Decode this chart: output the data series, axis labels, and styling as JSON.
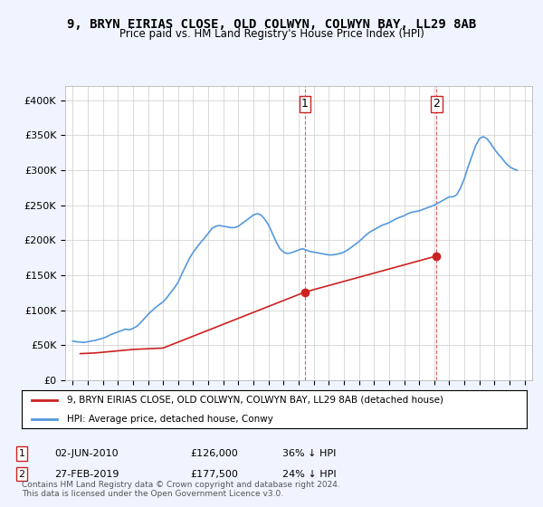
{
  "title": "9, BRYN EIRIAS CLOSE, OLD COLWYN, COLWYN BAY, LL29 8AB",
  "subtitle": "Price paid vs. HM Land Registry's House Price Index (HPI)",
  "ylabel_ticks": [
    "£0",
    "£50K",
    "£100K",
    "£150K",
    "£200K",
    "£250K",
    "£300K",
    "£350K",
    "£400K"
  ],
  "ytick_values": [
    0,
    50000,
    100000,
    150000,
    200000,
    250000,
    300000,
    350000,
    400000
  ],
  "ylim": [
    0,
    420000
  ],
  "xlim_start": 1994.5,
  "xlim_end": 2025.5,
  "hpi_color": "#5599dd",
  "price_color": "#cc2222",
  "transaction1_date": "02-JUN-2010",
  "transaction1_price": 126000,
  "transaction1_label": "36% ↓ HPI",
  "transaction2_date": "27-FEB-2019",
  "transaction2_price": 177500,
  "transaction2_label": "24% ↓ HPI",
  "transaction1_x": 2010.42,
  "transaction2_x": 2019.16,
  "legend_line1": "9, BRYN EIRIAS CLOSE, OLD COLWYN, COLWYN BAY, LL29 8AB (detached house)",
  "legend_line2": "HPI: Average price, detached house, Conwy",
  "footer": "Contains HM Land Registry data © Crown copyright and database right 2024.\nThis data is licensed under the Open Government Licence v3.0.",
  "background_color": "#f0f4ff",
  "plot_bg": "#ffffff",
  "grid_color": "#cccccc",
  "hpi_data": {
    "years": [
      1995.0,
      1995.25,
      1995.5,
      1995.75,
      1996.0,
      1996.25,
      1996.5,
      1996.75,
      1997.0,
      1997.25,
      1997.5,
      1997.75,
      1998.0,
      1998.25,
      1998.5,
      1998.75,
      1999.0,
      1999.25,
      1999.5,
      1999.75,
      2000.0,
      2000.25,
      2000.5,
      2000.75,
      2001.0,
      2001.25,
      2001.5,
      2001.75,
      2002.0,
      2002.25,
      2002.5,
      2002.75,
      2003.0,
      2003.25,
      2003.5,
      2003.75,
      2004.0,
      2004.25,
      2004.5,
      2004.75,
      2005.0,
      2005.25,
      2005.5,
      2005.75,
      2006.0,
      2006.25,
      2006.5,
      2006.75,
      2007.0,
      2007.25,
      2007.5,
      2007.75,
      2008.0,
      2008.25,
      2008.5,
      2008.75,
      2009.0,
      2009.25,
      2009.5,
      2009.75,
      2010.0,
      2010.25,
      2010.5,
      2010.75,
      2011.0,
      2011.25,
      2011.5,
      2011.75,
      2012.0,
      2012.25,
      2012.5,
      2012.75,
      2013.0,
      2013.25,
      2013.5,
      2013.75,
      2014.0,
      2014.25,
      2014.5,
      2014.75,
      2015.0,
      2015.25,
      2015.5,
      2015.75,
      2016.0,
      2016.25,
      2016.5,
      2016.75,
      2017.0,
      2017.25,
      2017.5,
      2017.75,
      2018.0,
      2018.25,
      2018.5,
      2018.75,
      2019.0,
      2019.25,
      2019.5,
      2019.75,
      2020.0,
      2020.25,
      2020.5,
      2020.75,
      2021.0,
      2021.25,
      2021.5,
      2021.75,
      2022.0,
      2022.25,
      2022.5,
      2022.75,
      2023.0,
      2023.25,
      2023.5,
      2023.75,
      2024.0,
      2024.25,
      2024.5
    ],
    "values": [
      56000,
      55000,
      54500,
      54000,
      55000,
      56000,
      57000,
      58500,
      60000,
      62000,
      65000,
      67000,
      69000,
      71000,
      73000,
      72000,
      74000,
      77000,
      82000,
      88000,
      94000,
      99000,
      104000,
      108000,
      112000,
      118000,
      125000,
      132000,
      140000,
      152000,
      163000,
      174000,
      183000,
      190000,
      197000,
      203000,
      210000,
      217000,
      220000,
      221000,
      220000,
      219000,
      218000,
      218000,
      220000,
      224000,
      228000,
      232000,
      236000,
      238000,
      236000,
      230000,
      222000,
      210000,
      198000,
      188000,
      183000,
      181000,
      182000,
      184000,
      186000,
      188000,
      186000,
      184000,
      183000,
      182000,
      181000,
      180000,
      179000,
      179000,
      180000,
      181000,
      183000,
      186000,
      190000,
      194000,
      198000,
      203000,
      208000,
      212000,
      215000,
      218000,
      221000,
      223000,
      225000,
      228000,
      231000,
      233000,
      235000,
      238000,
      240000,
      241000,
      242000,
      244000,
      246000,
      248000,
      250000,
      253000,
      256000,
      259000,
      262000,
      262000,
      265000,
      275000,
      288000,
      305000,
      320000,
      335000,
      345000,
      348000,
      345000,
      338000,
      330000,
      323000,
      317000,
      310000,
      305000,
      302000,
      300000
    ]
  },
  "price_data": {
    "years": [
      1995.5,
      1996.0,
      1996.5,
      1997.0,
      1997.5,
      1998.0,
      1999.0,
      2001.0,
      2010.42,
      2019.16
    ],
    "values": [
      38000,
      38500,
      39000,
      40000,
      41000,
      42000,
      44000,
      46000,
      126000,
      177500
    ]
  }
}
